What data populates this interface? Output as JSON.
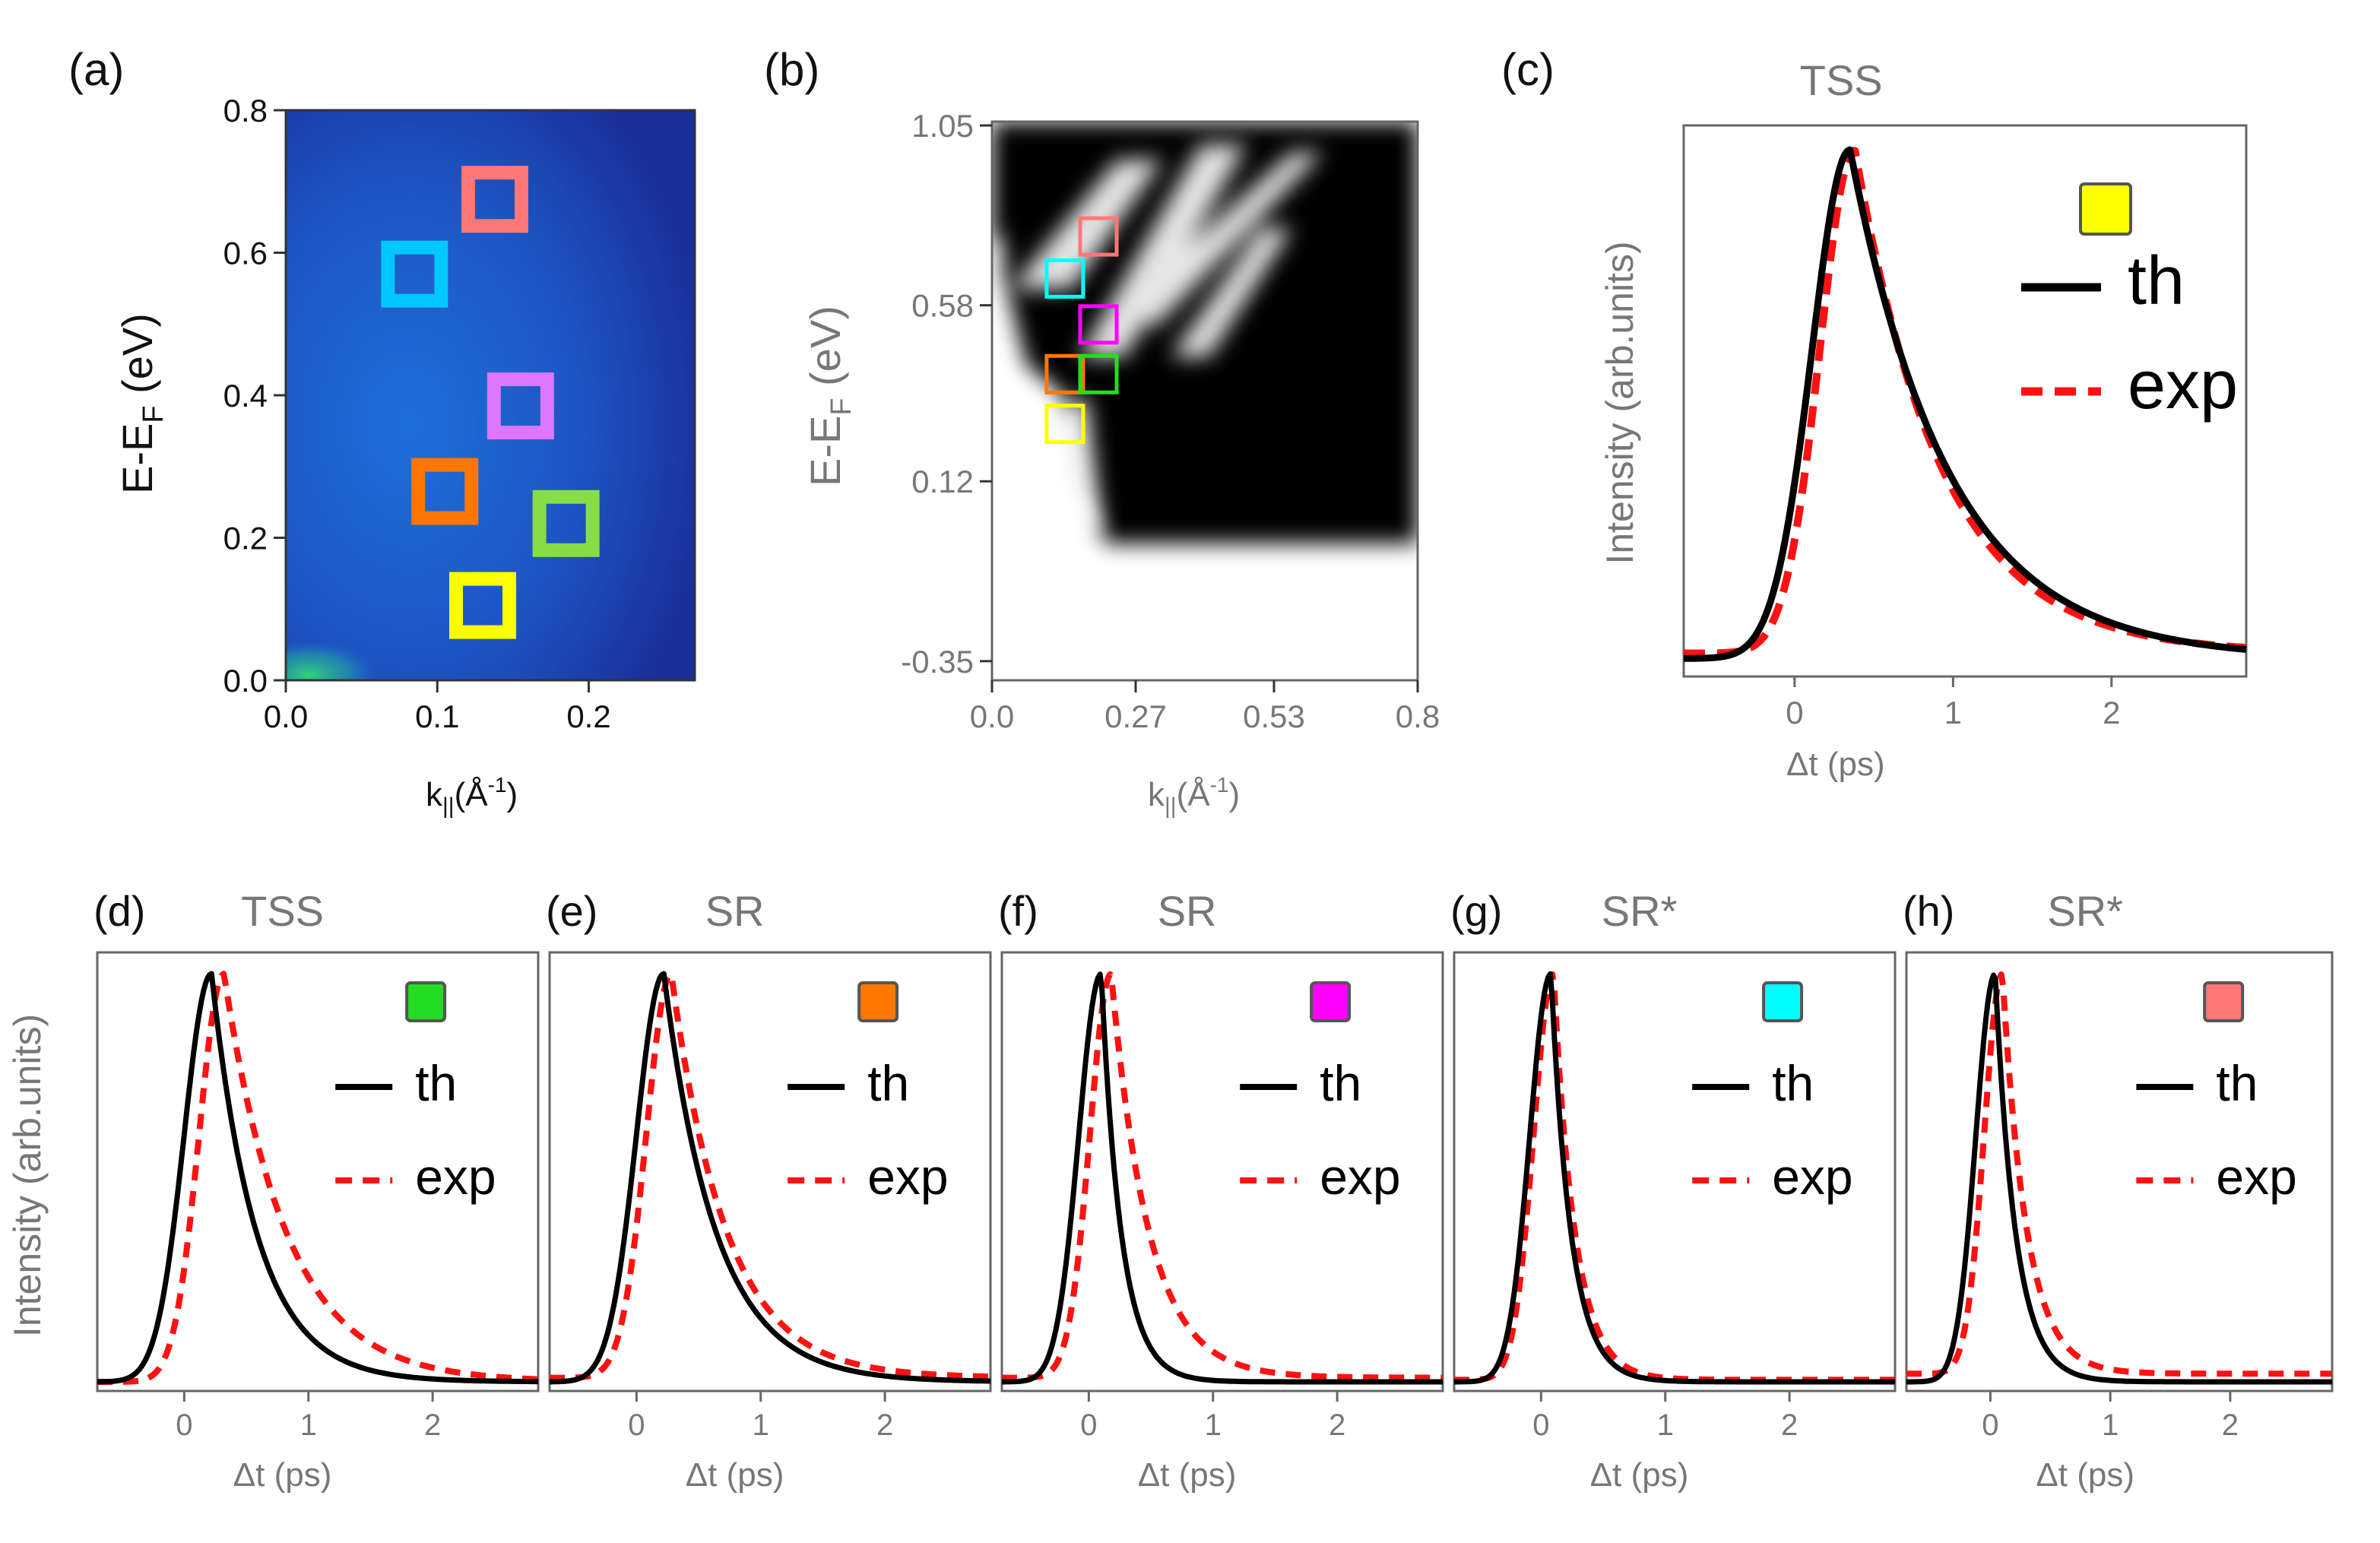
{
  "colors": {
    "yellow": "#ffff00",
    "green": "#22dd22",
    "orange": "#ff7700",
    "magenta": "#ff00ff",
    "cyan": "#00ffff",
    "pink": "#ff7777",
    "violet": "#dd77ff",
    "teal": "#00c8ff",
    "lime": "#88dd44",
    "exp": "#ff1111",
    "th": "#000000",
    "axis": "#666666"
  },
  "chart_data": [
    {
      "id": "a",
      "type": "heatmap",
      "panel_label": "(a)",
      "xlabel_main": "k",
      "xlabel_sub": "||",
      "xlabel_unit": "(Å",
      "xlabel_exp": "-1",
      "xlabel_close": ")",
      "ylabel_main": "E-E",
      "ylabel_sub": "F",
      "ylabel_unit": " (eV)",
      "xlim": [
        0.0,
        0.27
      ],
      "ylim": [
        0.0,
        0.8
      ],
      "xticks": [
        "0.0",
        "0.1",
        "0.2"
      ],
      "xtick_values": [
        0.0,
        0.1,
        0.2
      ],
      "yticks": [
        "0.0",
        "0.2",
        "0.4",
        "0.6",
        "0.8"
      ],
      "ytick_values": [
        0.0,
        0.2,
        0.4,
        0.6,
        0.8
      ],
      "markers": [
        {
          "color": "pink",
          "k": 0.138,
          "E": 0.675
        },
        {
          "color": "teal",
          "k": 0.085,
          "E": 0.57
        },
        {
          "color": "violet",
          "k": 0.155,
          "E": 0.385
        },
        {
          "color": "orange",
          "k": 0.105,
          "E": 0.265
        },
        {
          "color": "lime",
          "k": 0.185,
          "E": 0.22
        },
        {
          "color": "yellow",
          "k": 0.13,
          "E": 0.105
        }
      ]
    },
    {
      "id": "b",
      "type": "heatmap",
      "panel_label": "(b)",
      "xlabel_main": "k",
      "xlabel_sub": "||",
      "xlabel_unit": "(Å",
      "xlabel_exp": "-1",
      "xlabel_close": ")",
      "ylabel_main": "E-E",
      "ylabel_sub": "F",
      "ylabel_unit": " (eV)",
      "xlim": [
        0.0,
        0.8
      ],
      "ylim": [
        -0.4,
        1.06
      ],
      "xticks": [
        "0.0",
        "0.27",
        "0.53",
        "0.8"
      ],
      "xtick_values": [
        0.0,
        0.27,
        0.53,
        0.8
      ],
      "yticks": [
        "-0.35",
        "0.12",
        "0.58",
        "1.05"
      ],
      "ytick_values": [
        -0.35,
        0.12,
        0.58,
        1.05
      ],
      "markers": [
        {
          "color": "pink",
          "k": 0.2,
          "E": 0.76
        },
        {
          "color": "cyan",
          "k": 0.137,
          "E": 0.65
        },
        {
          "color": "magenta",
          "k": 0.2,
          "E": 0.53
        },
        {
          "color": "orange",
          "k": 0.137,
          "E": 0.4
        },
        {
          "color": "green",
          "k": 0.2,
          "E": 0.4
        },
        {
          "color": "yellow",
          "k": 0.137,
          "E": 0.27
        }
      ]
    },
    {
      "id": "c",
      "type": "line",
      "panel_label": "(c)",
      "title": "TSS",
      "swatch": "yellow",
      "xlabel": "Δt (ps)",
      "ylabel": "Intensity (arb.units)",
      "xlim": [
        -0.7,
        2.85
      ],
      "xticks": [
        "0",
        "1",
        "2"
      ],
      "xtick_values": [
        0,
        1,
        2
      ],
      "series": [
        {
          "name": "th",
          "peak": 0.35,
          "rise": 0.24,
          "decay": 0.62,
          "base": 0.02
        },
        {
          "name": "exp",
          "peak": 0.38,
          "rise": 0.22,
          "decay": 0.55,
          "base": 0.03
        }
      ]
    },
    {
      "id": "d",
      "type": "line",
      "panel_label": "(d)",
      "title": "TSS",
      "swatch": "green",
      "xlabel": "Δt (ps)",
      "ylabel": "Intensity (arb.units)",
      "xlim": [
        -0.7,
        2.85
      ],
      "xticks": [
        "0",
        "1",
        "2"
      ],
      "xtick_values": [
        0,
        1,
        2
      ],
      "series": [
        {
          "name": "th",
          "peak": 0.22,
          "rise": 0.22,
          "decay": 0.36,
          "base": 0.0
        },
        {
          "name": "exp",
          "peak": 0.32,
          "rise": 0.2,
          "decay": 0.5,
          "base": 0.0
        }
      ]
    },
    {
      "id": "e",
      "type": "line",
      "panel_label": "(e)",
      "title": "SR",
      "swatch": "orange",
      "xlabel": "Δt (ps)",
      "ylabel": "",
      "xlim": [
        -0.7,
        2.85
      ],
      "xticks": [
        "0",
        "1",
        "2"
      ],
      "xtick_values": [
        0,
        1,
        2
      ],
      "series": [
        {
          "name": "th",
          "peak": 0.22,
          "rise": 0.22,
          "decay": 0.42,
          "base": 0.0
        },
        {
          "name": "exp",
          "peak": 0.28,
          "rise": 0.2,
          "decay": 0.44,
          "base": 0.01
        }
      ]
    },
    {
      "id": "f",
      "type": "line",
      "panel_label": "(f)",
      "title": "SR",
      "swatch": "magenta",
      "xlabel": "Δt (ps)",
      "ylabel": "",
      "xlim": [
        -0.7,
        2.85
      ],
      "xticks": [
        "0",
        "1",
        "2"
      ],
      "xtick_values": [
        0,
        1,
        2
      ],
      "series": [
        {
          "name": "th",
          "peak": 0.1,
          "rise": 0.18,
          "decay": 0.16,
          "base": 0.0
        },
        {
          "name": "exp",
          "peak": 0.18,
          "rise": 0.17,
          "decay": 0.3,
          "base": 0.01
        }
      ]
    },
    {
      "id": "g",
      "type": "line",
      "panel_label": "(g)",
      "title": "SR*",
      "swatch": "cyan",
      "xlabel": "Δt (ps)",
      "ylabel": "",
      "xlim": [
        -0.7,
        2.85
      ],
      "xticks": [
        "0",
        "1",
        "2"
      ],
      "xtick_values": [
        0,
        1,
        2
      ],
      "series": [
        {
          "name": "th",
          "peak": 0.08,
          "rise": 0.17,
          "decay": 0.16,
          "base": 0.0
        },
        {
          "name": "exp",
          "peak": 0.1,
          "rise": 0.16,
          "decay": 0.17,
          "base": 0.005
        }
      ]
    },
    {
      "id": "h",
      "type": "line",
      "panel_label": "(h)",
      "title": "SR*",
      "swatch": "pink",
      "xlabel": "Δt (ps)",
      "ylabel": "",
      "xlim": [
        -0.7,
        2.85
      ],
      "xticks": [
        "0",
        "1",
        "2"
      ],
      "xtick_values": [
        0,
        1,
        2
      ],
      "series": [
        {
          "name": "th",
          "peak": 0.04,
          "rise": 0.16,
          "decay": 0.17,
          "base": 0.0
        },
        {
          "name": "exp",
          "peak": 0.1,
          "rise": 0.15,
          "decay": 0.2,
          "base": 0.02
        }
      ]
    }
  ],
  "legend": {
    "th_label": "th",
    "exp_label": "exp"
  }
}
